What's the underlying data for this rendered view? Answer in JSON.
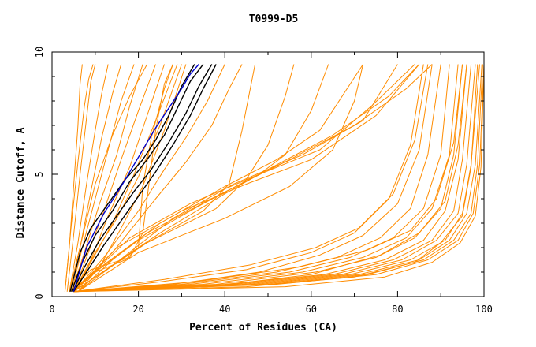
{
  "chart_data": {
    "type": "line",
    "title": "T0999-D5",
    "xlabel": "Percent of Residues (CA)",
    "ylabel": "Distance Cutoff, A",
    "xlim": [
      0,
      100
    ],
    "ylim": [
      0,
      10
    ],
    "x_ticks": [
      "0",
      "20",
      "40",
      "60",
      "80",
      "100"
    ],
    "y_ticks": [
      "0",
      "5",
      "10"
    ],
    "grid": false,
    "legend": "none",
    "colors": {
      "highlight": "#0000cc",
      "reference": "#000000",
      "models": "#ff8c00",
      "axes": "#000000"
    },
    "series": [
      {
        "name": "highlight",
        "role": "highlight",
        "x": [
          5,
          8,
          12,
          16,
          20,
          24,
          27,
          30,
          32,
          34
        ],
        "y": [
          0.2,
          2.0,
          3.4,
          4.5,
          5.7,
          6.9,
          7.7,
          8.5,
          9.1,
          9.5
        ]
      },
      {
        "name": "reference-1",
        "role": "reference",
        "x": [
          4.5,
          7,
          10,
          14,
          18,
          22,
          26,
          29,
          32,
          35
        ],
        "y": [
          0.2,
          1.4,
          2.5,
          3.5,
          4.7,
          5.6,
          6.6,
          7.7,
          8.8,
          9.5
        ]
      },
      {
        "name": "reference-2",
        "role": "reference",
        "x": [
          4.2,
          6.5,
          9,
          13,
          17,
          21,
          24,
          27,
          30,
          33
        ],
        "y": [
          0.2,
          1.8,
          2.8,
          3.8,
          4.8,
          5.6,
          6.4,
          7.4,
          8.6,
          9.5
        ]
      },
      {
        "name": "reference-3",
        "role": "reference",
        "x": [
          4.8,
          7.5,
          11,
          15,
          19,
          23,
          27,
          31,
          34,
          37
        ],
        "y": [
          0.2,
          1.2,
          2.3,
          3.3,
          4.3,
          5.2,
          6.3,
          7.5,
          8.6,
          9.5
        ]
      },
      {
        "name": "reference-4",
        "role": "reference",
        "x": [
          5,
          8,
          12,
          16,
          20,
          24,
          28,
          32,
          35,
          38
        ],
        "y": [
          0.2,
          1.0,
          2.1,
          3.1,
          4.1,
          5.1,
          6.2,
          7.4,
          8.5,
          9.5
        ]
      },
      {
        "name": "model-steep-1",
        "role": "model",
        "x": [
          3,
          4,
          5,
          6,
          6.5,
          7
        ],
        "y": [
          0.2,
          2.0,
          4.5,
          7.0,
          8.7,
          9.5
        ]
      },
      {
        "name": "model-steep-2",
        "role": "model",
        "x": [
          3.5,
          5,
          6.5,
          8,
          9,
          10
        ],
        "y": [
          0.2,
          2.5,
          5.0,
          7.3,
          8.8,
          9.5
        ]
      },
      {
        "name": "model-steep-3",
        "role": "model",
        "x": [
          4,
          6,
          8,
          10,
          11.5,
          13
        ],
        "y": [
          0.2,
          2.2,
          4.6,
          6.8,
          8.3,
          9.5
        ]
      },
      {
        "name": "model-steep-4",
        "role": "model",
        "x": [
          4,
          6.5,
          9,
          11.5,
          14,
          16
        ],
        "y": [
          0.2,
          2.0,
          4.3,
          6.5,
          8.3,
          9.5
        ]
      },
      {
        "name": "model-steep-5",
        "role": "model",
        "x": [
          4.5,
          7,
          10,
          13,
          16,
          19
        ],
        "y": [
          0.2,
          2.0,
          4.0,
          6.0,
          8.0,
          9.5
        ]
      },
      {
        "name": "model-steep-6",
        "role": "model",
        "x": [
          4.5,
          7.5,
          11,
          15,
          18,
          21
        ],
        "y": [
          0.2,
          1.8,
          3.8,
          5.8,
          7.8,
          9.5
        ]
      },
      {
        "name": "model-steep-7",
        "role": "model",
        "x": [
          5,
          8,
          12,
          16,
          20,
          24
        ],
        "y": [
          0.2,
          1.6,
          3.5,
          5.6,
          7.6,
          9.5
        ]
      },
      {
        "name": "model-steep-8",
        "role": "model",
        "x": [
          5,
          9,
          13,
          18,
          22,
          26
        ],
        "y": [
          0.2,
          1.5,
          3.3,
          5.3,
          7.4,
          9.5
        ]
      },
      {
        "name": "model-steep-9",
        "role": "model",
        "x": [
          5,
          9,
          14,
          19,
          24,
          29
        ],
        "y": [
          0.2,
          1.4,
          3.0,
          5.0,
          7.2,
          9.5
        ]
      },
      {
        "name": "model-steep-10",
        "role": "model",
        "x": [
          5.5,
          10,
          15,
          20,
          25,
          30
        ],
        "y": [
          0.2,
          1.8,
          3.2,
          4.9,
          7.0,
          9.5
        ]
      },
      {
        "name": "model-steep-11",
        "role": "model",
        "x": [
          3,
          4.5,
          6,
          7.5,
          8.5,
          9.5
        ],
        "y": [
          0.2,
          3.0,
          5.5,
          7.8,
          8.9,
          9.5
        ]
      },
      {
        "name": "model-steep-12",
        "role": "model",
        "x": [
          4,
          7,
          10,
          14,
          18,
          22
        ],
        "y": [
          0.2,
          2.4,
          4.6,
          6.6,
          8.2,
          9.5
        ]
      },
      {
        "name": "model-steep-13",
        "role": "model",
        "x": [
          6,
          11,
          16,
          21,
          26,
          31
        ],
        "y": [
          0.2,
          1.2,
          2.8,
          4.5,
          6.8,
          9.5
        ]
      },
      {
        "name": "model-kink-1",
        "role": "model",
        "x": [
          4,
          10,
          17,
          20,
          21,
          23,
          26,
          28
        ],
        "y": [
          0.2,
          1.0,
          1.5,
          2.0,
          4.5,
          6.5,
          8.5,
          9.5
        ]
      },
      {
        "name": "model-kink-2",
        "role": "model",
        "x": [
          4,
          9,
          18,
          21,
          22,
          24,
          26,
          28
        ],
        "y": [
          0.2,
          1.1,
          1.6,
          2.6,
          4.0,
          6.8,
          8.7,
          9.5
        ]
      },
      {
        "name": "model-mid-1",
        "role": "model",
        "x": [
          5,
          12,
          20,
          26,
          31,
          36,
          40
        ],
        "y": [
          0.2,
          1.6,
          3.5,
          5.2,
          6.5,
          8.0,
          9.5
        ]
      },
      {
        "name": "model-mid-2",
        "role": "model",
        "x": [
          5,
          14,
          24,
          31,
          37,
          41,
          44
        ],
        "y": [
          0.2,
          1.8,
          4.0,
          5.5,
          7.0,
          8.5,
          9.5
        ]
      },
      {
        "name": "model-mid-3",
        "role": "model",
        "x": [
          5,
          20,
          35,
          41,
          44,
          47
        ],
        "y": [
          0.2,
          2.0,
          3.5,
          4.6,
          6.8,
          9.5
        ]
      },
      {
        "name": "model-mid-4",
        "role": "model",
        "x": [
          5,
          22,
          38,
          45,
          50,
          54,
          56
        ],
        "y": [
          0.2,
          2.2,
          3.6,
          4.8,
          6.2,
          8.2,
          9.5
        ]
      },
      {
        "name": "model-mid-5",
        "role": "model",
        "x": [
          5,
          25,
          40,
          48,
          54,
          60,
          64
        ],
        "y": [
          0.2,
          2.6,
          4.2,
          5.0,
          5.8,
          7.6,
          9.5
        ]
      },
      {
        "name": "model-mid-6",
        "role": "model",
        "x": [
          6,
          20,
          40,
          55,
          65,
          70,
          72
        ],
        "y": [
          0.2,
          1.8,
          3.2,
          4.5,
          6.0,
          8.0,
          9.5
        ]
      },
      {
        "name": "model-cross-1",
        "role": "model",
        "x": [
          5,
          10,
          20,
          35,
          50,
          65,
          78,
          85
        ],
        "y": [
          0.2,
          1.0,
          2.3,
          3.8,
          5.2,
          6.6,
          8.2,
          9.5
        ]
      },
      {
        "name": "model-cross-2",
        "role": "model",
        "x": [
          5,
          12,
          22,
          38,
          55,
          70,
          82,
          88
        ],
        "y": [
          0.2,
          1.3,
          2.6,
          4.1,
          5.6,
          7.0,
          8.5,
          9.5
        ]
      },
      {
        "name": "model-cross-3",
        "role": "model",
        "x": [
          6,
          14,
          25,
          40,
          52,
          62,
          72
        ],
        "y": [
          0.2,
          1.5,
          3.0,
          4.5,
          5.6,
          6.8,
          9.5
        ]
      },
      {
        "name": "model-cross-4",
        "role": "model",
        "x": [
          6,
          15,
          28,
          42,
          58,
          72,
          80
        ],
        "y": [
          0.2,
          1.4,
          3.2,
          4.6,
          5.8,
          7.2,
          9.5
        ]
      },
      {
        "name": "model-cross-5",
        "role": "model",
        "x": [
          5,
          15,
          30,
          45,
          60,
          75,
          85
        ],
        "y": [
          0.2,
          2.0,
          3.5,
          4.6,
          5.6,
          7.4,
          9.5
        ]
      },
      {
        "name": "model-cross-6",
        "role": "model",
        "x": [
          5,
          18,
          32,
          48,
          62,
          74,
          84
        ],
        "y": [
          0.2,
          2.4,
          3.8,
          5.0,
          6.0,
          7.8,
          9.5
        ]
      },
      {
        "name": "model-late-1",
        "role": "model",
        "x": [
          5,
          25,
          45,
          60,
          70,
          78,
          83,
          86
        ],
        "y": [
          0.2,
          0.6,
          1.1,
          1.8,
          2.6,
          4.0,
          6.2,
          9.5
        ]
      },
      {
        "name": "model-late-2",
        "role": "model",
        "x": [
          5,
          28,
          48,
          62,
          72,
          80,
          85,
          88
        ],
        "y": [
          0.2,
          0.5,
          1.0,
          1.7,
          2.5,
          3.8,
          6.0,
          9.5
        ]
      },
      {
        "name": "model-late-3",
        "role": "model",
        "x": [
          5,
          30,
          52,
          66,
          76,
          83,
          87,
          90
        ],
        "y": [
          0.2,
          0.5,
          1.0,
          1.6,
          2.4,
          3.6,
          5.8,
          9.5
        ]
      },
      {
        "name": "model-late-4",
        "role": "model",
        "x": [
          5,
          32,
          55,
          69,
          79,
          86,
          90,
          92
        ],
        "y": [
          0.2,
          0.5,
          1.0,
          1.6,
          2.4,
          3.6,
          5.8,
          9.5
        ]
      },
      {
        "name": "model-late-5",
        "role": "model",
        "x": [
          5,
          35,
          58,
          72,
          82,
          88,
          92,
          94
        ],
        "y": [
          0.2,
          0.5,
          1.0,
          1.6,
          2.4,
          3.6,
          5.8,
          9.5
        ]
      },
      {
        "name": "model-late-6",
        "role": "model",
        "x": [
          5,
          38,
          61,
          75,
          84,
          90,
          93,
          95
        ],
        "y": [
          0.2,
          0.5,
          1.0,
          1.6,
          2.4,
          3.6,
          5.8,
          9.5
        ]
      },
      {
        "name": "model-late-7",
        "role": "model",
        "x": [
          5,
          40,
          63,
          77,
          86,
          91,
          94,
          96
        ],
        "y": [
          0.2,
          0.5,
          0.9,
          1.5,
          2.3,
          3.5,
          5.6,
          9.5
        ]
      },
      {
        "name": "model-late-8",
        "role": "model",
        "x": [
          5,
          42,
          65,
          79,
          88,
          93,
          95,
          97
        ],
        "y": [
          0.2,
          0.5,
          0.9,
          1.5,
          2.3,
          3.5,
          5.6,
          9.5
        ]
      },
      {
        "name": "model-late-9",
        "role": "model",
        "x": [
          5,
          44,
          67,
          81,
          89,
          94,
          96,
          98
        ],
        "y": [
          0.2,
          0.5,
          0.9,
          1.5,
          2.3,
          3.4,
          5.4,
          9.5
        ]
      },
      {
        "name": "model-late-10",
        "role": "model",
        "x": [
          5,
          46,
          69,
          83,
          91,
          95,
          97,
          99
        ],
        "y": [
          0.2,
          0.5,
          0.9,
          1.5,
          2.3,
          3.4,
          5.4,
          9.5
        ]
      },
      {
        "name": "model-late-11",
        "role": "model",
        "x": [
          5,
          48,
          71,
          85,
          92,
          96,
          98,
          99.5
        ],
        "y": [
          0.2,
          0.5,
          0.9,
          1.5,
          2.3,
          3.4,
          5.4,
          9.5
        ]
      },
      {
        "name": "model-late-12",
        "role": "model",
        "x": [
          5,
          50,
          73,
          86,
          93,
          97,
          98.5,
          99.7
        ],
        "y": [
          0.2,
          0.5,
          0.9,
          1.5,
          2.3,
          3.4,
          5.4,
          9.5
        ]
      },
      {
        "name": "model-late-13",
        "role": "model",
        "x": [
          5,
          52,
          75,
          87,
          94,
          97.5,
          99,
          100
        ],
        "y": [
          0.2,
          0.5,
          0.9,
          1.5,
          2.3,
          3.4,
          5.4,
          9.5
        ]
      },
      {
        "name": "model-late-14",
        "role": "model",
        "x": [
          5,
          36,
          60,
          76,
          85,
          91,
          94,
          96
        ],
        "y": [
          0.2,
          0.4,
          0.9,
          1.7,
          2.6,
          3.9,
          6.2,
          9.5
        ]
      },
      {
        "name": "model-late-15",
        "role": "model",
        "x": [
          5,
          33,
          57,
          73,
          83,
          89,
          93,
          95
        ],
        "y": [
          0.2,
          0.6,
          1.2,
          1.9,
          2.7,
          4.0,
          6.3,
          9.5
        ]
      },
      {
        "name": "model-late-16",
        "role": "model",
        "x": [
          5,
          45,
          70,
          84,
          90,
          95,
          97,
          98.5
        ],
        "y": [
          0.2,
          0.4,
          0.8,
          1.4,
          2.2,
          3.3,
          5.3,
          9.5
        ]
      },
      {
        "name": "model-late-17",
        "role": "model",
        "x": [
          5,
          54,
          77,
          88,
          94.5,
          98,
          99.3,
          100
        ],
        "y": [
          0.2,
          0.4,
          0.8,
          1.4,
          2.2,
          3.3,
          5.3,
          9.5
        ]
      },
      {
        "name": "model-late-18",
        "role": "model",
        "x": [
          5,
          26,
          46,
          61,
          71,
          79,
          84,
          87
        ],
        "y": [
          0.2,
          0.7,
          1.3,
          2.0,
          2.8,
          4.2,
          6.4,
          9.5
        ]
      }
    ]
  }
}
